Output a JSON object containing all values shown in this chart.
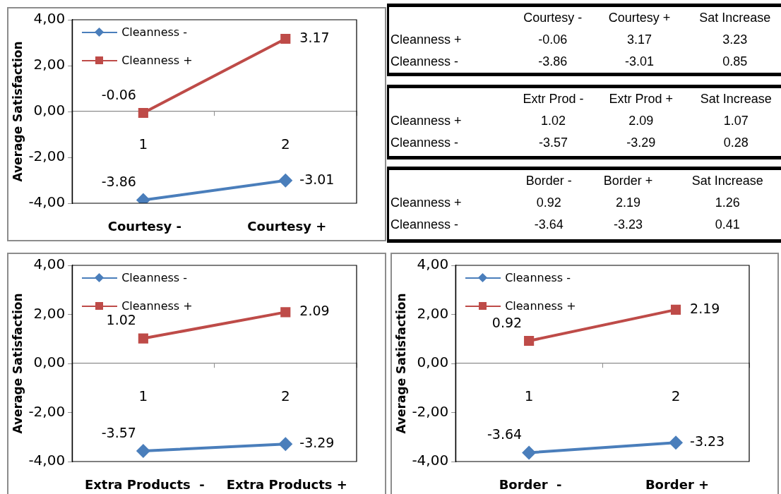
{
  "chart_data": [
    {
      "type": "line",
      "ylabel": "Average Satisfaction",
      "categories": [
        "1",
        "2"
      ],
      "ylim": [
        -4,
        4
      ],
      "yticks": [
        {
          "value": -4,
          "label": "-4,00"
        },
        {
          "value": -2,
          "label": "-2,00"
        },
        {
          "value": 0,
          "label": "0,00"
        },
        {
          "value": 2,
          "label": "2,00"
        },
        {
          "value": 4,
          "label": "4,00"
        }
      ],
      "legend": "top left",
      "data_labels": true,
      "annotations": [
        "Courtesy -",
        "Courtesy +"
      ],
      "series": [
        {
          "name": "Cleanness -",
          "color": "#4a7ebb",
          "marker": "diamond",
          "values": [
            -3.86,
            -3.01
          ]
        },
        {
          "name": "Cleanness +",
          "color": "#be4b48",
          "marker": "square",
          "values": [
            -0.06,
            3.17
          ]
        }
      ]
    },
    {
      "type": "heatmap",
      "data_labels": true,
      "categories": [
        "Courtesy -",
        "Courtesy +",
        "Sat Increase"
      ],
      "y_categories": [
        "Cleanness +",
        "Cleanness -"
      ],
      "cells": [
        [
          -0.06,
          3.17,
          3.23
        ],
        [
          -3.86,
          -3.01,
          0.85
        ]
      ]
    },
    {
      "type": "heatmap",
      "data_labels": true,
      "categories": [
        "Extr Prod -",
        "Extr Prod +",
        "Sat Increase"
      ],
      "y_categories": [
        "Cleanness +",
        "Cleanness -"
      ],
      "cells": [
        [
          1.02,
          2.09,
          1.07
        ],
        [
          -3.57,
          -3.29,
          0.28
        ]
      ]
    },
    {
      "type": "heatmap",
      "data_labels": true,
      "categories": [
        "Border -",
        "Border +",
        "Sat Increase"
      ],
      "y_categories": [
        "Cleanness +",
        "Cleanness -"
      ],
      "cells": [
        [
          0.92,
          2.19,
          1.26
        ],
        [
          -3.64,
          -3.23,
          0.41
        ]
      ]
    },
    {
      "type": "line",
      "ylabel": "Average Satisfaction",
      "categories": [
        "1",
        "2"
      ],
      "ylim": [
        -4,
        4
      ],
      "yticks": [
        {
          "value": -4,
          "label": "-4,00"
        },
        {
          "value": -2,
          "label": "-2,00"
        },
        {
          "value": 0,
          "label": "0,00"
        },
        {
          "value": 2,
          "label": "2,00"
        },
        {
          "value": 4,
          "label": "4,00"
        }
      ],
      "legend": "top left",
      "data_labels": true,
      "annotations": [
        "Extra Products  -",
        "Extra Products +"
      ],
      "series": [
        {
          "name": "Cleanness -",
          "color": "#4a7ebb",
          "marker": "diamond",
          "values": [
            -3.57,
            -3.29
          ]
        },
        {
          "name": "Cleanness +",
          "color": "#be4b48",
          "marker": "square",
          "values": [
            1.02,
            2.09
          ]
        }
      ]
    },
    {
      "type": "line",
      "ylabel": "Average Satisfaction",
      "categories": [
        "1",
        "2"
      ],
      "ylim": [
        -4,
        4
      ],
      "yticks": [
        {
          "value": -4,
          "label": "-4,00"
        },
        {
          "value": -2,
          "label": "-2,00"
        },
        {
          "value": 0,
          "label": "0,00"
        },
        {
          "value": 2,
          "label": "2,00"
        },
        {
          "value": 4,
          "label": "4,00"
        }
      ],
      "legend": "top left",
      "data_labels": true,
      "annotations": [
        "Border  -",
        "Border +"
      ],
      "series": [
        {
          "name": "Cleanness -",
          "color": "#4a7ebb",
          "marker": "diamond",
          "values": [
            -3.64,
            -3.23
          ]
        },
        {
          "name": "Cleanness +",
          "color": "#be4b48",
          "marker": "square",
          "values": [
            0.92,
            2.19
          ]
        }
      ]
    }
  ]
}
